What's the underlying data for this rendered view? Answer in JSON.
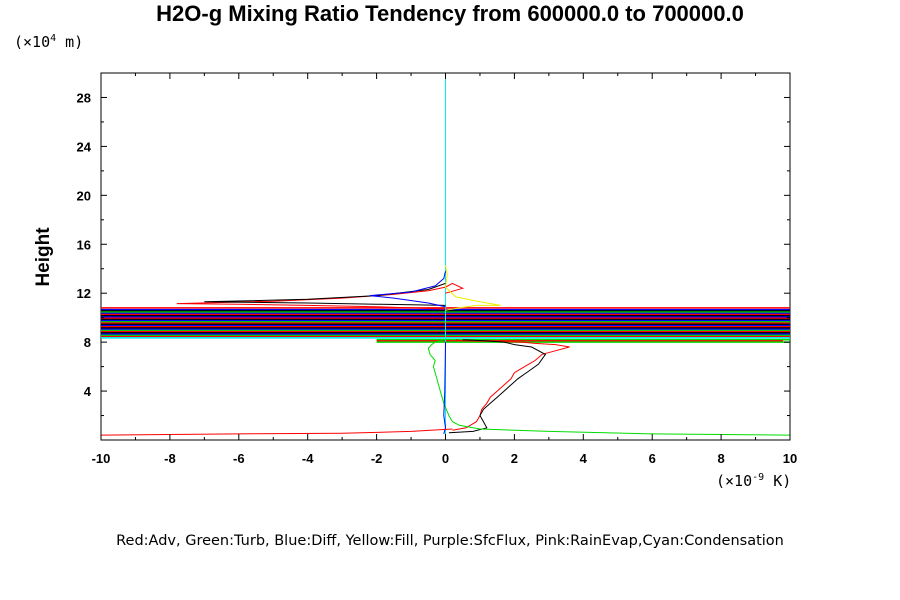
{
  "chart_data": {
    "type": "line",
    "title": "H2O-g Mixing Ratio Tendency from 600000.0 to 700000.0",
    "ylabel": "Height",
    "y_unit": {
      "prefix": "(×10",
      "exp": "4",
      "suffix": " m)"
    },
    "x_unit": {
      "prefix": "(×10",
      "exp": "-9",
      "suffix": " K)"
    },
    "xlim": [
      -10,
      10
    ],
    "ylim": [
      0,
      30
    ],
    "xticks": [
      -10,
      -8,
      -6,
      -4,
      -2,
      0,
      2,
      4,
      6,
      8,
      10
    ],
    "yticks": [
      4,
      8,
      12,
      16,
      20,
      24,
      28
    ],
    "grid": false,
    "legend": "Red:Adv, Green:Turb, Blue:Diff, Yellow:Fill, Purple:SfcFlux, Pink:RainEvap,Cyan:Condensation",
    "colors": {
      "Adv": "#ff0000",
      "Turb": "#00dd00",
      "Diff": "#0000ff",
      "Fill": "#eeee00",
      "SfcFlux": "#9900cc",
      "RainEvap": "#ff88cc",
      "Condensation": "#00eeee",
      "Total": "#000000"
    },
    "series": [
      {
        "color": "#00eeee",
        "x": [
          0.0,
          0.0
        ],
        "y": [
          0.0,
          30.0
        ]
      },
      {
        "color": "#ff0000",
        "x": [
          0.2,
          0.6,
          0.9,
          1.0,
          1.05,
          1.2,
          1.3,
          1.5,
          1.7,
          1.9,
          2.0,
          2.3,
          2.6,
          2.8,
          3.2,
          3.6,
          3.2,
          2.6,
          2.2,
          1.5,
          0.5,
          0.3
        ],
        "y": [
          0.8,
          1.0,
          1.5,
          2.0,
          2.5,
          3.0,
          3.5,
          4.0,
          4.5,
          5.0,
          5.5,
          6.0,
          6.5,
          7.0,
          7.3,
          7.6,
          7.8,
          7.9,
          8.0,
          8.05,
          8.1,
          8.2
        ]
      },
      {
        "color": "#000000",
        "x": [
          0.1,
          0.8,
          1.2,
          1.1,
          1.0,
          1.1,
          1.3,
          1.5,
          1.7,
          1.9,
          2.1,
          2.4,
          2.7,
          2.9,
          2.5,
          2.0,
          1.7,
          1.2,
          0.5
        ],
        "y": [
          0.6,
          0.7,
          1.0,
          1.5,
          2.0,
          2.5,
          3.0,
          3.5,
          4.0,
          4.5,
          5.0,
          5.6,
          6.2,
          7.0,
          7.6,
          7.8,
          8.0,
          8.1,
          8.2
        ]
      },
      {
        "color": "#00dd00",
        "x": [
          10.0,
          6.0,
          3.0,
          1.0,
          0.4,
          0.2,
          0.1,
          -0.05,
          -0.15,
          -0.25,
          -0.35,
          -0.3,
          -0.45,
          -0.5,
          -0.4,
          -0.3,
          0.0
        ],
        "y": [
          0.4,
          0.5,
          0.7,
          0.9,
          1.2,
          1.5,
          2.0,
          3.0,
          4.0,
          5.0,
          6.0,
          6.5,
          7.0,
          7.5,
          7.8,
          8.0,
          8.2
        ]
      },
      {
        "color": "#0000ff",
        "x": [
          -0.05,
          0.0,
          -0.05,
          -0.02,
          0.0
        ],
        "y": [
          0.5,
          1.0,
          2.0,
          4.0,
          8.0
        ]
      },
      {
        "color": "#ff0000",
        "x": [
          -10.0,
          -6.0,
          -3.0,
          -1.0,
          0.2
        ],
        "y": [
          0.4,
          0.5,
          0.55,
          0.7,
          0.9
        ]
      },
      {
        "color": "#ff0000",
        "x": [
          0.0,
          -1.0,
          -2.0,
          -4.0,
          -6.0,
          -7.8,
          -5.0,
          -3.0,
          -1.5,
          -0.5,
          0.0,
          0.2,
          0.5,
          0.0
        ],
        "y": [
          10.7,
          10.8,
          10.9,
          11.0,
          11.1,
          11.15,
          11.35,
          11.6,
          11.9,
          12.2,
          12.5,
          12.8,
          12.4,
          12.0
        ]
      },
      {
        "color": "#000000",
        "x": [
          0.0,
          -1.0,
          -2.0,
          -4.0,
          -7.0,
          -4.0,
          -2.0,
          -0.5,
          0.0
        ],
        "y": [
          11.0,
          11.05,
          11.1,
          11.2,
          11.3,
          11.5,
          11.8,
          12.3,
          12.8
        ]
      },
      {
        "color": "#0000ff",
        "x": [
          0.0,
          -0.5,
          -1.5,
          -2.2,
          -1.0,
          -0.3,
          -0.05,
          0.0
        ],
        "y": [
          10.9,
          11.2,
          11.6,
          11.8,
          12.1,
          12.6,
          13.2,
          13.8
        ]
      },
      {
        "color": "#eeee00",
        "x": [
          0.0,
          0.4,
          0.9,
          1.6,
          1.0,
          0.3,
          0.0,
          0.05,
          0.0
        ],
        "y": [
          10.6,
          10.8,
          11.0,
          11.0,
          11.3,
          11.7,
          12.5,
          13.5,
          14.3
        ]
      }
    ],
    "bands": [
      {
        "color": "#ff0000",
        "x": [
          -10,
          10
        ],
        "y": 10.8
      },
      {
        "color": "#0000ff",
        "x": [
          -10,
          10
        ],
        "y": 10.65
      },
      {
        "color": "#000000",
        "x": [
          -10,
          10
        ],
        "y": 10.55
      },
      {
        "color": "#00dd00",
        "x": [
          -10,
          10
        ],
        "y": 10.45
      },
      {
        "color": "#0000ff",
        "x": [
          -10,
          10
        ],
        "y": 10.35
      },
      {
        "color": "#ff0000",
        "x": [
          -10,
          10
        ],
        "y": 10.25
      },
      {
        "color": "#000000",
        "x": [
          -10,
          10
        ],
        "y": 10.15
      },
      {
        "color": "#0000ff",
        "x": [
          -10,
          10
        ],
        "y": 10.05
      },
      {
        "color": "#ff0000",
        "x": [
          -10,
          10
        ],
        "y": 9.95
      },
      {
        "color": "#000000",
        "x": [
          -10,
          10
        ],
        "y": 9.85
      },
      {
        "color": "#0000ff",
        "x": [
          -10,
          10
        ],
        "y": 9.75
      },
      {
        "color": "#00dd00",
        "x": [
          -10,
          10
        ],
        "y": 9.65
      },
      {
        "color": "#ff0000",
        "x": [
          -10,
          10
        ],
        "y": 9.55
      },
      {
        "color": "#000000",
        "x": [
          -10,
          10
        ],
        "y": 9.45
      },
      {
        "color": "#0000ff",
        "x": [
          -10,
          10
        ],
        "y": 9.35
      },
      {
        "color": "#ff0000",
        "x": [
          -10,
          10
        ],
        "y": 9.25
      },
      {
        "color": "#000000",
        "x": [
          -10,
          10
        ],
        "y": 9.15
      },
      {
        "color": "#0000ff",
        "x": [
          -10,
          10
        ],
        "y": 9.05
      },
      {
        "color": "#00dd00",
        "x": [
          -10,
          10
        ],
        "y": 8.95
      },
      {
        "color": "#ff0000",
        "x": [
          -10,
          10
        ],
        "y": 8.85
      },
      {
        "color": "#000000",
        "x": [
          -10,
          10
        ],
        "y": 8.75
      },
      {
        "color": "#0000ff",
        "x": [
          -10,
          10
        ],
        "y": 8.65
      },
      {
        "color": "#00dd00",
        "x": [
          -10,
          10
        ],
        "y": 8.55
      },
      {
        "color": "#ff0000",
        "x": [
          -10,
          10
        ],
        "y": 8.45
      },
      {
        "color": "#00eeee",
        "x": [
          -10,
          10
        ],
        "y": 8.35
      },
      {
        "color": "#00dd00",
        "x": [
          -2,
          10
        ],
        "y": 8.2
      },
      {
        "color": "#ff0000",
        "x": [
          -2,
          9.8
        ],
        "y": 8.1
      },
      {
        "color": "#00dd00",
        "x": [
          -2,
          10
        ],
        "y": 8.0
      }
    ]
  }
}
